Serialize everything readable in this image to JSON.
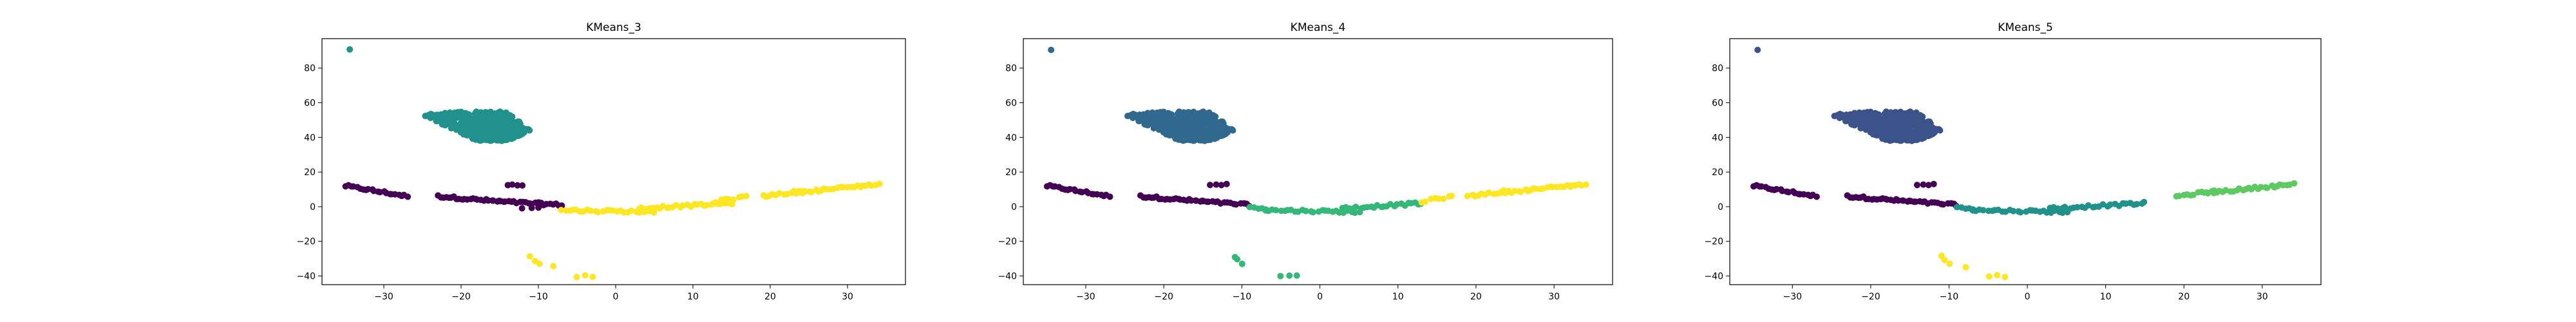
{
  "chart_data": [
    {
      "type": "scatter",
      "title": "KMeans_3",
      "xlabel": "",
      "ylabel": "",
      "xlim": [
        -38,
        37.5
      ],
      "ylim": [
        -45,
        97
      ],
      "xticks": [
        -30,
        -20,
        -10,
        0,
        10,
        20,
        30
      ],
      "yticks": [
        -40,
        -20,
        0,
        20,
        40,
        60,
        80
      ],
      "colors": [
        "#440154",
        "#21918c",
        "#fde725"
      ],
      "series": [
        {
          "cluster": 0,
          "color": "#440154",
          "segments": [
            {
              "x0": -35,
              "y0": 12,
              "x1": -27,
              "y1": 6,
              "n": 22
            },
            {
              "x0": -23,
              "y0": 6,
              "x1": -15,
              "y1": 3,
              "n": 24
            },
            {
              "x0": -15,
              "y0": 3,
              "x1": -7,
              "y1": 1,
              "n": 22
            },
            {
              "x0": -14,
              "y0": 12.5,
              "x1": -12,
              "y1": 12.5,
              "n": 4
            },
            {
              "x0": -12,
              "y0": -1,
              "x1": -10,
              "y1": -1,
              "n": 3
            }
          ]
        },
        {
          "cluster": 1,
          "color": "#21918c",
          "segments": [
            {
              "x0": -34.5,
              "y0": 91,
              "x1": -34.5,
              "y1": 91,
              "n": 1
            }
          ],
          "blob": {
            "corners": [
              [
                -25,
                53
              ],
              [
                -21,
                55
              ],
              [
                -14,
                55
              ],
              [
                -11,
                44
              ],
              [
                -14,
                38
              ],
              [
                -18,
                38
              ]
            ],
            "n": 450
          }
        },
        {
          "cluster": 2,
          "color": "#fde725",
          "segments": [
            {
              "x0": -7,
              "y0": -2,
              "x1": 5,
              "y1": -3,
              "n": 26
            },
            {
              "x0": 3,
              "y0": -1,
              "x1": 15,
              "y1": 2,
              "n": 28
            },
            {
              "x0": 13,
              "y0": 3,
              "x1": 17,
              "y1": 6,
              "n": 8
            },
            {
              "x0": 19,
              "y0": 6,
              "x1": 24,
              "y1": 9,
              "n": 12
            },
            {
              "x0": 23,
              "y0": 8,
              "x1": 34,
              "y1": 13,
              "n": 28
            },
            {
              "x0": -11,
              "y0": -29,
              "x1": -10,
              "y1": -33,
              "n": 3
            },
            {
              "x0": -8,
              "y0": -35,
              "x1": -8,
              "y1": -35,
              "n": 1
            },
            {
              "x0": -5,
              "y0": -40,
              "x1": -3,
              "y1": -40,
              "n": 3
            }
          ]
        }
      ]
    },
    {
      "type": "scatter",
      "title": "KMeans_4",
      "xlabel": "",
      "ylabel": "",
      "xlim": [
        -38,
        37.5
      ],
      "ylim": [
        -45,
        97
      ],
      "xticks": [
        -30,
        -20,
        -10,
        0,
        10,
        20,
        30
      ],
      "yticks": [
        -40,
        -20,
        0,
        20,
        40,
        60,
        80
      ],
      "colors": [
        "#440154",
        "#31688e",
        "#35b779",
        "#fde725"
      ],
      "series": [
        {
          "cluster": 0,
          "color": "#440154",
          "segments": [
            {
              "x0": -35,
              "y0": 12,
              "x1": -27,
              "y1": 6,
              "n": 22
            },
            {
              "x0": -23,
              "y0": 6,
              "x1": -15,
              "y1": 3,
              "n": 24
            },
            {
              "x0": -15,
              "y0": 3,
              "x1": -9,
              "y1": 1,
              "n": 16
            },
            {
              "x0": -14,
              "y0": 12.5,
              "x1": -12,
              "y1": 12.5,
              "n": 4
            }
          ]
        },
        {
          "cluster": 1,
          "color": "#31688e",
          "segments": [
            {
              "x0": -34.5,
              "y0": 91,
              "x1": -34.5,
              "y1": 91,
              "n": 1
            }
          ],
          "blob": {
            "corners": [
              [
                -25,
                53
              ],
              [
                -21,
                55
              ],
              [
                -14,
                55
              ],
              [
                -11,
                44
              ],
              [
                -14,
                38
              ],
              [
                -18,
                38
              ]
            ],
            "n": 450
          }
        },
        {
          "cluster": 2,
          "color": "#35b779",
          "segments": [
            {
              "x0": -9,
              "y0": 0,
              "x1": -7,
              "y1": -1,
              "n": 5
            },
            {
              "x0": -7,
              "y0": -2,
              "x1": 5,
              "y1": -3,
              "n": 26
            },
            {
              "x0": 3,
              "y0": -1,
              "x1": 13,
              "y1": 2,
              "n": 24
            },
            {
              "x0": -11,
              "y0": -29,
              "x1": -10,
              "y1": -33,
              "n": 3
            },
            {
              "x0": -5,
              "y0": -40,
              "x1": -3,
              "y1": -40,
              "n": 3
            }
          ]
        },
        {
          "cluster": 3,
          "color": "#fde725",
          "segments": [
            {
              "x0": 13,
              "y0": 3,
              "x1": 17,
              "y1": 6,
              "n": 8
            },
            {
              "x0": 19,
              "y0": 6,
              "x1": 24,
              "y1": 9,
              "n": 12
            },
            {
              "x0": 23,
              "y0": 8,
              "x1": 34,
              "y1": 13,
              "n": 28
            }
          ]
        }
      ]
    },
    {
      "type": "scatter",
      "title": "KMeans_5",
      "xlabel": "",
      "ylabel": "",
      "xlim": [
        -38,
        37.5
      ],
      "ylim": [
        -45,
        97
      ],
      "xticks": [
        -30,
        -20,
        -10,
        0,
        10,
        20,
        30
      ],
      "yticks": [
        -40,
        -20,
        0,
        20,
        40,
        60,
        80
      ],
      "colors": [
        "#440154",
        "#3b528b",
        "#21918c",
        "#5ec962",
        "#fde725"
      ],
      "series": [
        {
          "cluster": 0,
          "color": "#440154",
          "segments": [
            {
              "x0": -35,
              "y0": 12,
              "x1": -27,
              "y1": 6,
              "n": 22
            },
            {
              "x0": -23,
              "y0": 6,
              "x1": -15,
              "y1": 3,
              "n": 24
            },
            {
              "x0": -15,
              "y0": 3,
              "x1": -9,
              "y1": 1,
              "n": 16
            },
            {
              "x0": -14,
              "y0": 12.5,
              "x1": -12,
              "y1": 12.5,
              "n": 4
            }
          ]
        },
        {
          "cluster": 1,
          "color": "#3b528b",
          "segments": [
            {
              "x0": -34.5,
              "y0": 91,
              "x1": -34.5,
              "y1": 91,
              "n": 1
            }
          ],
          "blob": {
            "corners": [
              [
                -25,
                53
              ],
              [
                -21,
                55
              ],
              [
                -14,
                55
              ],
              [
                -11,
                44
              ],
              [
                -14,
                38
              ],
              [
                -18,
                38
              ]
            ],
            "n": 450
          }
        },
        {
          "cluster": 2,
          "color": "#21918c",
          "segments": [
            {
              "x0": -9,
              "y0": 0,
              "x1": -7,
              "y1": -1,
              "n": 5
            },
            {
              "x0": -7,
              "y0": -2,
              "x1": 5,
              "y1": -3,
              "n": 26
            },
            {
              "x0": 3,
              "y0": -1,
              "x1": 15,
              "y1": 2,
              "n": 26
            }
          ]
        },
        {
          "cluster": 3,
          "color": "#5ec962",
          "segments": [
            {
              "x0": 19,
              "y0": 6,
              "x1": 24,
              "y1": 9,
              "n": 12
            },
            {
              "x0": 23,
              "y0": 8,
              "x1": 34,
              "y1": 13,
              "n": 28
            }
          ]
        },
        {
          "cluster": 4,
          "color": "#fde725",
          "segments": [
            {
              "x0": -11,
              "y0": -29,
              "x1": -10,
              "y1": -33,
              "n": 3
            },
            {
              "x0": -8,
              "y0": -35,
              "x1": -8,
              "y1": -35,
              "n": 1
            },
            {
              "x0": -5,
              "y0": -40,
              "x1": -3,
              "y1": -40,
              "n": 3
            }
          ]
        }
      ]
    }
  ]
}
